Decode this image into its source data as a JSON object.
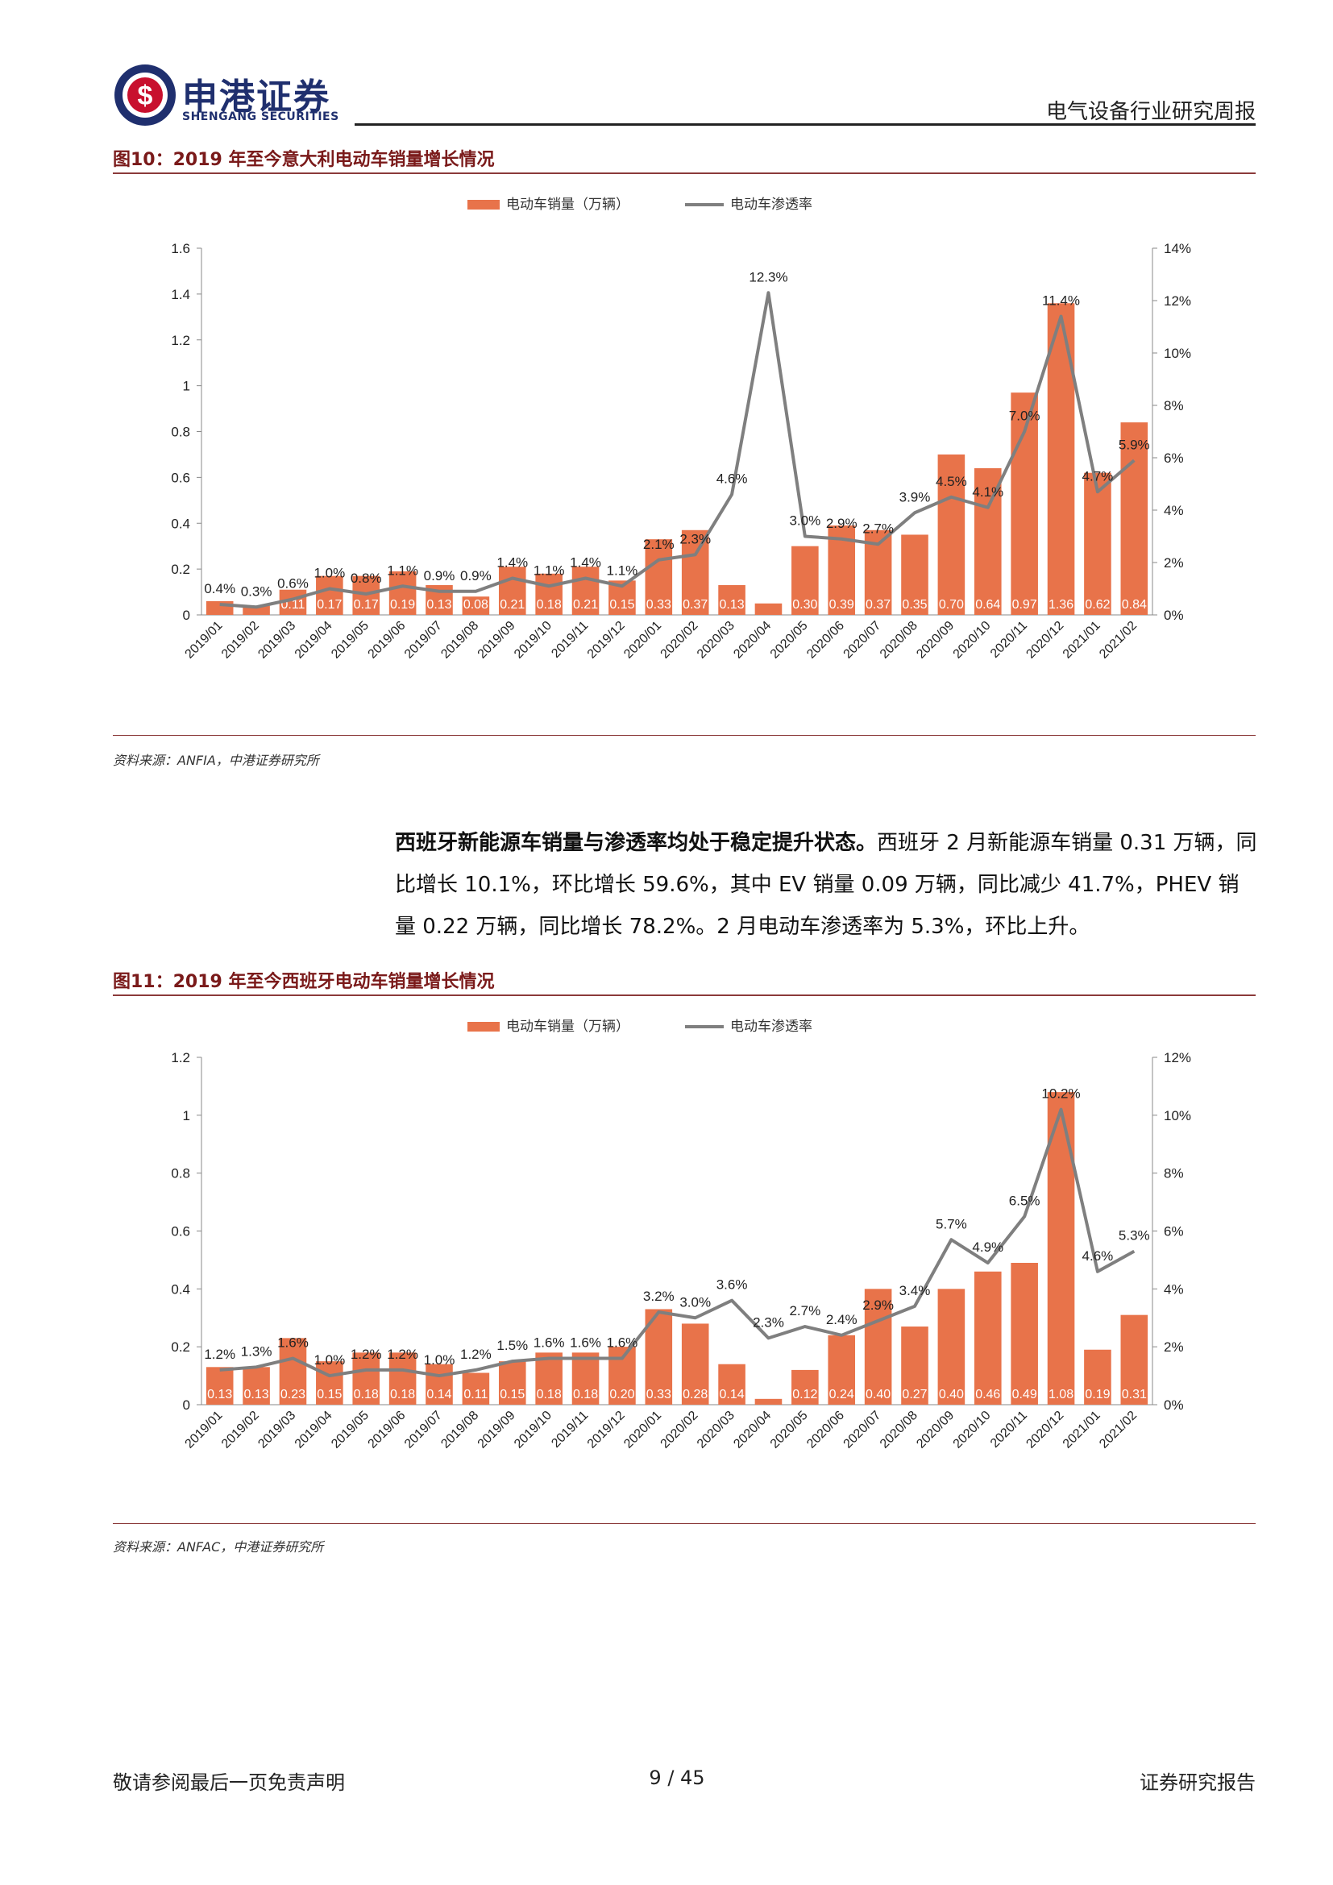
{
  "header": {
    "company_cn": "申港证券",
    "company_en": "SHENGANG SECURITIES",
    "report_type": "电气设备行业研究周报"
  },
  "figure10": {
    "title": "图10：2019 年至今意大利电动车销量增长情况",
    "source": "资料来源：ANFIA，中港证券研究所"
  },
  "figure11": {
    "title": "图11：2019 年至今西班牙电动车销量增长情况",
    "source": "资料来源：ANFAC，中港证券研究所"
  },
  "paragraph": {
    "lead": "西班牙新能源车销量与渗透率均处于稳定提升状态。",
    "body": "西班牙 2 月新能源车销量 0.31 万辆，同比增长 10.1%，环比增长 59.6%，其中 EV 销量 0.09 万辆，同比减少 41.7%，PHEV 销量 0.22 万辆，同比增长 78.2%。2 月电动车渗透率为 5.3%，环比上升。"
  },
  "footer": {
    "disclaimer": "敬请参阅最后一页免责声明",
    "page": "9 / 45",
    "report_label": "证券研究报告"
  },
  "colors": {
    "bar": "#e8734a",
    "line": "#7f7f7f",
    "accent": "#8b3a3a",
    "brand": "#1f2f6e"
  },
  "chart_data": [
    {
      "type": "bar",
      "categories": [
        "2019/01",
        "2019/02",
        "2019/03",
        "2019/04",
        "2019/05",
        "2019/06",
        "2019/07",
        "2019/08",
        "2019/09",
        "2019/10",
        "2019/11",
        "2019/12",
        "2020/01",
        "2020/02",
        "2020/03",
        "2020/04",
        "2020/05",
        "2020/06",
        "2020/07",
        "2020/08",
        "2020/09",
        "2020/10",
        "2020/11",
        "2020/12",
        "2021/01",
        "2021/02"
      ],
      "series": [
        {
          "name": "电动车销量（万辆）",
          "type": "bar",
          "axis": "left",
          "values": [
            0.06,
            0.04,
            0.11,
            0.17,
            0.17,
            0.19,
            0.13,
            0.08,
            0.21,
            0.18,
            0.21,
            0.15,
            0.33,
            0.37,
            0.13,
            0.05,
            0.3,
            0.39,
            0.37,
            0.35,
            0.7,
            0.64,
            0.97,
            1.36,
            0.62,
            0.84
          ],
          "labels": [
            "",
            "",
            "0.11",
            "0.17",
            "0.17",
            "0.19",
            "0.13",
            "0.08",
            "0.21",
            "0.18",
            "0.21",
            "0.15",
            "0.33",
            "0.37",
            "0.13",
            "",
            "0.30",
            "0.39",
            "0.37",
            "0.35",
            "0.70",
            "0.64",
            "0.97",
            "1.36",
            "0.62",
            "0.84"
          ]
        },
        {
          "name": "电动车渗透率",
          "type": "line",
          "axis": "right",
          "values": [
            0.4,
            0.3,
            0.6,
            1.0,
            0.8,
            1.1,
            0.9,
            0.9,
            1.4,
            1.1,
            1.4,
            1.1,
            2.1,
            2.3,
            4.6,
            12.3,
            3.0,
            2.9,
            2.7,
            3.9,
            4.5,
            4.1,
            7.0,
            11.4,
            4.7,
            5.9
          ],
          "labels": [
            "0.4%",
            "0.3%",
            "0.6%",
            "1.0%",
            "0.8%",
            "1.1%",
            "0.9%",
            "0.9%",
            "1.4%",
            "1.1%",
            "1.4%",
            "1.1%",
            "2.1%",
            "2.3%",
            "4.6%",
            "12.3%",
            "3.0%",
            "2.9%",
            "2.7%",
            "3.9%",
            "4.5%",
            "4.1%",
            "7.0%",
            "11.4%",
            "4.7%",
            "5.9%"
          ]
        }
      ],
      "ylim": [
        0,
        1.6
      ],
      "yticks": [
        "0",
        "0.2",
        "0.4",
        "0.6",
        "0.8",
        "1",
        "1.2",
        "1.4",
        "1.6"
      ],
      "y2lim": [
        0,
        14
      ],
      "y2ticks": [
        "0%",
        "2%",
        "4%",
        "6%",
        "8%",
        "10%",
        "12%",
        "14%"
      ],
      "legend": "top-center"
    },
    {
      "type": "bar",
      "categories": [
        "2019/01",
        "2019/02",
        "2019/03",
        "2019/04",
        "2019/05",
        "2019/06",
        "2019/07",
        "2019/08",
        "2019/09",
        "2019/10",
        "2019/11",
        "2019/12",
        "2020/01",
        "2020/02",
        "2020/03",
        "2020/04",
        "2020/05",
        "2020/06",
        "2020/07",
        "2020/08",
        "2020/09",
        "2020/10",
        "2020/11",
        "2020/12",
        "2021/01",
        "2021/02"
      ],
      "series": [
        {
          "name": "电动车销量（万辆）",
          "type": "bar",
          "axis": "left",
          "values": [
            0.13,
            0.13,
            0.23,
            0.15,
            0.18,
            0.18,
            0.14,
            0.11,
            0.15,
            0.18,
            0.18,
            0.2,
            0.33,
            0.28,
            0.14,
            0.02,
            0.12,
            0.24,
            0.4,
            0.27,
            0.4,
            0.46,
            0.49,
            1.08,
            0.19,
            0.31
          ],
          "labels": [
            "0.13",
            "0.13",
            "0.23",
            "0.15",
            "0.18",
            "0.18",
            "0.14",
            "0.11",
            "0.15",
            "0.18",
            "0.18",
            "0.20",
            "0.33",
            "0.28",
            "0.14",
            "",
            "0.12",
            "0.24",
            "0.40",
            "0.27",
            "0.40",
            "0.46",
            "0.49",
            "1.08",
            "0.19",
            "0.31"
          ]
        },
        {
          "name": "电动车渗透率",
          "type": "line",
          "axis": "right",
          "values": [
            1.2,
            1.3,
            1.6,
            1.0,
            1.2,
            1.2,
            1.0,
            1.2,
            1.5,
            1.6,
            1.6,
            1.6,
            3.2,
            3.0,
            3.6,
            2.3,
            2.7,
            2.4,
            2.9,
            3.4,
            5.7,
            4.9,
            6.5,
            10.2,
            4.6,
            5.3
          ],
          "labels": [
            "1.2%",
            "1.3%",
            "1.6%",
            "1.0%",
            "1.2%",
            "1.2%",
            "1.0%",
            "1.2%",
            "1.5%",
            "1.6%",
            "1.6%",
            "1.6%",
            "3.2%",
            "3.0%",
            "3.6%",
            "2.3%",
            "2.7%",
            "2.4%",
            "2.9%",
            "3.4%",
            "5.7%",
            "4.9%",
            "6.5%",
            "10.2%",
            "4.6%",
            "5.3%"
          ]
        }
      ],
      "ylim": [
        0,
        1.2
      ],
      "yticks": [
        "0",
        "0.2",
        "0.4",
        "0.6",
        "0.8",
        "1",
        "1.2"
      ],
      "y2lim": [
        0,
        12
      ],
      "y2ticks": [
        "0%",
        "2%",
        "4%",
        "6%",
        "8%",
        "10%",
        "12%"
      ],
      "legend": "top-center"
    }
  ]
}
